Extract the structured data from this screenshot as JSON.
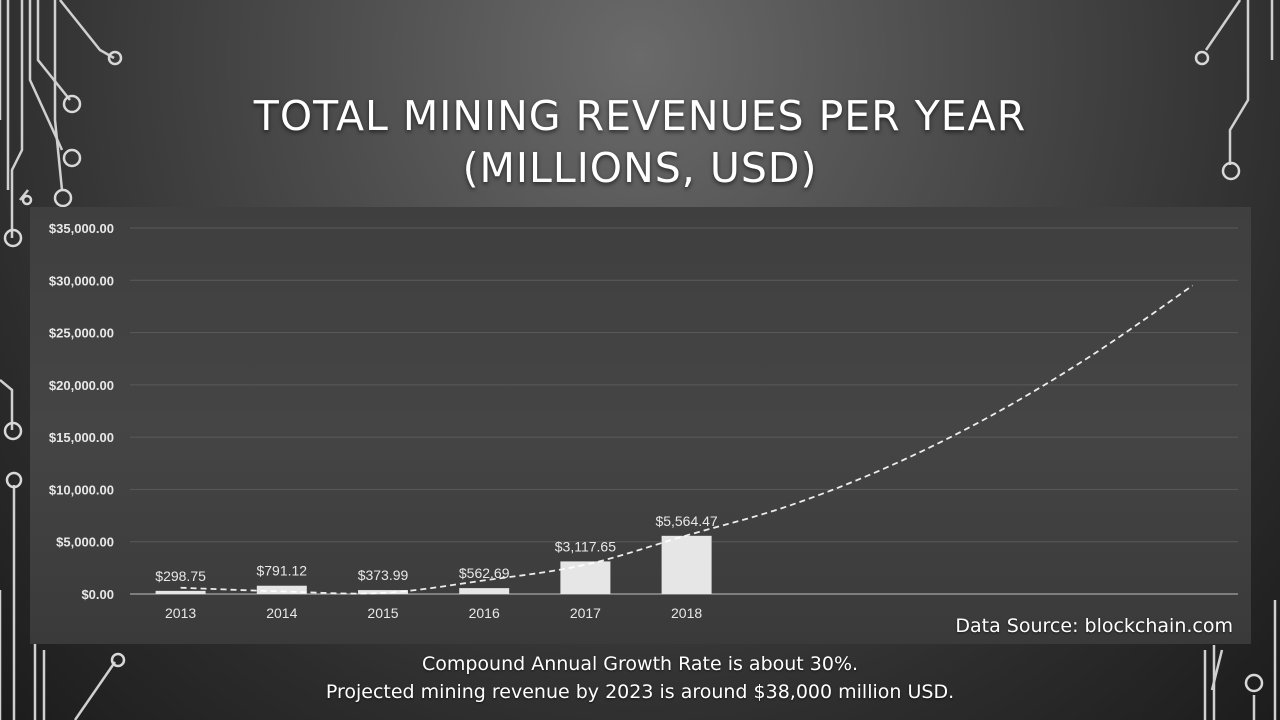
{
  "slide": {
    "title_line1": "TOTAL MINING REVENUES PER YEAR",
    "title_line2": "(MILLIONS, USD)",
    "source": "Data Source: blockchain.com",
    "note1": "Compound Annual Growth Rate is about 30%.",
    "note2": "Projected mining revenue by 2023 is around $38,000 million USD."
  },
  "chart_data": {
    "type": "bar",
    "categories": [
      "2013",
      "2014",
      "2015",
      "2016",
      "2017",
      "2018"
    ],
    "values": [
      298.75,
      791.12,
      373.99,
      562.69,
      3117.65,
      5564.47
    ],
    "data_labels": [
      "$298.75",
      "$791.12",
      "$373.99",
      "$562.69",
      "$3,117.65",
      "$5,564.47"
    ],
    "y_ticks": [
      0,
      5000,
      10000,
      15000,
      20000,
      25000,
      30000,
      35000
    ],
    "y_tick_labels": [
      "$0.00",
      "$5,000.00",
      "$10,000.00",
      "$15,000.00",
      "$20,000.00",
      "$25,000.00",
      "$30,000.00",
      "$35,000.00"
    ],
    "ylim": [
      0,
      35000
    ],
    "grid": true,
    "trendline": {
      "style": "dashed",
      "kind": "exponential fit extending beyond the data",
      "points": [
        {
          "x": 0,
          "y": 600
        },
        {
          "x": 1,
          "y": 250
        },
        {
          "x": 2,
          "y": 100
        },
        {
          "x": 3,
          "y": 1300
        },
        {
          "x": 4,
          "y": 2800
        },
        {
          "x": 5,
          "y": 5600
        },
        {
          "x": 6,
          "y": 8400
        },
        {
          "x": 7,
          "y": 12200
        },
        {
          "x": 8,
          "y": 17000
        },
        {
          "x": 9,
          "y": 22800
        },
        {
          "x": 10,
          "y": 29500
        }
      ]
    },
    "colors": {
      "bar": "#e6e6e6",
      "gridline": "#5a5a5a",
      "axis": "#bfbfbf",
      "trendline": "#ffffff",
      "text": "#e8e8e8"
    }
  }
}
